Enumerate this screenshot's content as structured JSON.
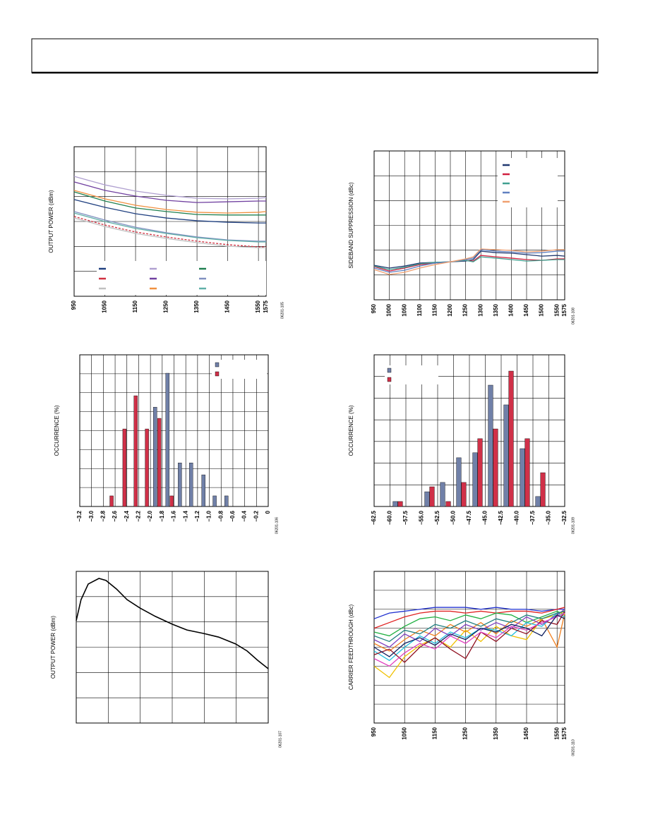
{
  "chart_data": [
    {
      "type": "line",
      "ylabel": "OUTPUT POWER (dBm)",
      "figure_id": "06201-105",
      "xlim": [
        950,
        1575
      ],
      "ylim": [
        0,
        6
      ],
      "xticks": [
        950,
        1050,
        1150,
        1250,
        1350,
        1450,
        1550,
        1575
      ],
      "yticks": [
        0,
        1,
        2,
        3,
        4,
        5,
        6
      ],
      "ytick_labels": false,
      "grid": true,
      "legend": "lower right",
      "x": [
        950,
        1050,
        1150,
        1250,
        1350,
        1450,
        1550,
        1575
      ],
      "series": [
        {
          "color": "#b0a0d0",
          "values": [
            4.81,
            4.47,
            4.22,
            4.05,
            3.93,
            3.91,
            3.93,
            3.96
          ]
        },
        {
          "color": "#7040a0",
          "values": [
            4.59,
            4.25,
            4.02,
            3.85,
            3.76,
            3.79,
            3.82,
            3.82
          ]
        },
        {
          "color": "#f09040",
          "values": [
            4.25,
            3.91,
            3.65,
            3.48,
            3.37,
            3.34,
            3.37,
            3.4
          ]
        },
        {
          "color": "#208050",
          "values": [
            4.19,
            3.82,
            3.54,
            3.4,
            3.28,
            3.26,
            3.26,
            3.26
          ]
        },
        {
          "color": "#204080",
          "values": [
            3.88,
            3.57,
            3.31,
            3.14,
            3.03,
            2.97,
            2.94,
            2.94
          ]
        },
        {
          "color": "#8090c0",
          "values": [
            3.4,
            3.06,
            2.77,
            2.55,
            2.38,
            2.26,
            2.21,
            2.21
          ]
        },
        {
          "color": "#60b0a8",
          "values": [
            3.34,
            3.0,
            2.72,
            2.52,
            2.35,
            2.24,
            2.18,
            2.18
          ]
        },
        {
          "color": "#d03040",
          "dashed": true,
          "values": [
            3.2,
            2.86,
            2.58,
            2.38,
            2.21,
            2.07,
            1.98,
            1.98
          ]
        },
        {
          "color": "#c0c0c0",
          "values": [
            3.14,
            2.8,
            2.52,
            2.32,
            2.15,
            2.01,
            1.95,
            1.95
          ]
        }
      ]
    },
    {
      "type": "line",
      "ylabel": "SIDEBAND SUPPRESSION (dBc)",
      "figure_id": "06201-108",
      "xlim": [
        950,
        1575
      ],
      "ylim": [
        0,
        6
      ],
      "xticks": [
        950,
        1000,
        1050,
        1100,
        1150,
        1200,
        1250,
        1300,
        1350,
        1400,
        1450,
        1500,
        1550,
        1575
      ],
      "yticks": [
        0,
        1,
        2,
        3,
        4,
        5,
        6
      ],
      "ytick_labels": false,
      "grid": true,
      "legend": "upper right",
      "x": [
        950,
        1000,
        1050,
        1100,
        1150,
        1200,
        1250,
        1275,
        1300,
        1350,
        1400,
        1450,
        1500,
        1550,
        1575
      ],
      "series": [
        {
          "color": "#203870",
          "values": [
            1.39,
            1.28,
            1.36,
            1.48,
            1.51,
            1.53,
            1.56,
            1.62,
            1.96,
            1.9,
            1.88,
            1.82,
            1.76,
            1.79,
            1.76
          ]
        },
        {
          "color": "#d02040",
          "values": [
            1.34,
            1.16,
            1.28,
            1.42,
            1.48,
            1.53,
            1.59,
            1.56,
            1.79,
            1.73,
            1.68,
            1.62,
            1.59,
            1.65,
            1.65
          ]
        },
        {
          "color": "#40a090",
          "values": [
            1.36,
            1.22,
            1.31,
            1.45,
            1.51,
            1.53,
            1.59,
            1.53,
            1.73,
            1.68,
            1.62,
            1.56,
            1.59,
            1.62,
            1.62
          ]
        },
        {
          "color": "#6080c0",
          "values": [
            1.28,
            1.11,
            1.19,
            1.36,
            1.48,
            1.53,
            1.62,
            1.68,
            2.02,
            1.96,
            1.93,
            1.88,
            1.9,
            1.96,
            1.96
          ]
        },
        {
          "color": "#f0a070",
          "values": [
            1.22,
            1.02,
            1.11,
            1.28,
            1.42,
            1.53,
            1.65,
            1.73,
            2.05,
            2.02,
            1.99,
            1.93,
            1.96,
            2.02,
            2.02
          ]
        }
      ]
    },
    {
      "type": "bar",
      "ylabel": "OCCURRENCE (%)",
      "figure_id": "06201-106",
      "xlim": [
        -3.2,
        0
      ],
      "ylim": [
        0,
        8
      ],
      "xticks": [
        {
          "value": -3.2,
          "label": "–3.2"
        },
        {
          "value": -3.0,
          "label": "–3.0"
        },
        {
          "value": -2.8,
          "label": "–2.8"
        },
        {
          "value": -2.6,
          "label": "–2.6"
        },
        {
          "value": -2.4,
          "label": "–2.4"
        },
        {
          "value": -2.2,
          "label": "–2.2"
        },
        {
          "value": -2.0,
          "label": "–2.0"
        },
        {
          "value": -1.8,
          "label": "–1.8"
        },
        {
          "value": -1.6,
          "label": "–1.6"
        },
        {
          "value": -1.4,
          "label": "–1.4"
        },
        {
          "value": -1.2,
          "label": "–1.2"
        },
        {
          "value": -1.0,
          "label": "–1.0"
        },
        {
          "value": -0.8,
          "label": "–0.8"
        },
        {
          "value": -0.6,
          "label": "–0.6"
        },
        {
          "value": -0.4,
          "label": "–0.4"
        },
        {
          "value": -0.2,
          "label": "–0.2"
        },
        0
      ],
      "yticks": [
        0,
        1,
        2,
        3,
        4,
        5,
        6,
        7,
        8
      ],
      "ytick_labels": false,
      "grid": true,
      "legend": "upper right",
      "series": [
        {
          "color": "#7080a8",
          "x": [
            -1.92,
            -1.71,
            -1.5,
            -1.31,
            -1.1,
            -0.91,
            -0.71
          ],
          "values": [
            5.24,
            7.03,
            2.3,
            2.3,
            1.67,
            0.56,
            0.56
          ]
        },
        {
          "color": "#d03048",
          "x": [
            -2.66,
            -2.44,
            -2.25,
            -2.06,
            -1.85,
            -1.64
          ],
          "values": [
            0.56,
            4.09,
            5.84,
            4.09,
            4.65,
            0.56
          ]
        }
      ]
    },
    {
      "type": "bar",
      "ylabel": "OCCURRENCE (%)",
      "figure_id": "06201-109",
      "xlim": [
        -62.5,
        -32.5
      ],
      "ylim": [
        0,
        7
      ],
      "xticks": [
        {
          "value": -62.5,
          "label": "–62.5"
        },
        {
          "value": -60.0,
          "label": "–60.0"
        },
        {
          "value": -57.5,
          "label": "–57.5"
        },
        {
          "value": -55.0,
          "label": "–55.0"
        },
        {
          "value": -52.5,
          "label": "–52.5"
        },
        {
          "value": -50.0,
          "label": "–50.0"
        },
        {
          "value": -47.5,
          "label": "–47.5"
        },
        {
          "value": -45.0,
          "label": "–45.0"
        },
        {
          "value": -42.5,
          "label": "–42.5"
        },
        {
          "value": -40.0,
          "label": "–40.0"
        },
        {
          "value": -37.5,
          "label": "–37.5"
        },
        {
          "value": -35.0,
          "label": "–35.0"
        },
        {
          "value": -32.5,
          "label": "–32.5"
        }
      ],
      "yticks": [
        0,
        1,
        2,
        3,
        4,
        5,
        6,
        7
      ],
      "ytick_labels": false,
      "grid": true,
      "legend": "upper left",
      "series": [
        {
          "color": "#7080a8",
          "x": [
            -59.17,
            -54.17,
            -51.72,
            -49.17,
            -46.61,
            -44.17,
            -41.72,
            -39.17,
            -36.72
          ],
          "values": [
            0.23,
            0.68,
            1.11,
            2.25,
            2.48,
            5.6,
            4.69,
            2.67,
            0.46
          ]
        },
        {
          "color": "#d03048",
          "x": [
            -58.39,
            -53.39,
            -50.83,
            -48.39,
            -45.83,
            -43.39,
            -40.94,
            -38.39,
            -35.94
          ],
          "values": [
            0.23,
            0.91,
            0.23,
            1.11,
            3.13,
            3.58,
            6.25,
            3.13,
            1.56
          ]
        }
      ]
    },
    {
      "type": "line",
      "ylabel": "OUTPUT POWER (dBm)",
      "figure_id": "06201-107",
      "xlim": [
        0,
        6
      ],
      "ylim": [
        0,
        6
      ],
      "xticks": [
        0,
        1,
        2,
        3,
        4,
        5,
        6
      ],
      "yticks": [
        0,
        1,
        2,
        3,
        4,
        5,
        6
      ],
      "xtick_labels": false,
      "ytick_labels": false,
      "grid": true,
      "x": [
        0,
        0.15,
        0.375,
        0.71,
        0.93,
        1.26,
        1.59,
        1.99,
        2.47,
        3.0,
        3.46,
        3.99,
        4.45,
        4.98,
        5.34,
        5.67,
        6
      ],
      "series": [
        {
          "color": "#000000",
          "values": [
            4.05,
            4.88,
            5.5,
            5.72,
            5.64,
            5.3,
            4.88,
            4.55,
            4.22,
            3.91,
            3.68,
            3.54,
            3.4,
            3.13,
            2.85,
            2.48,
            2.15
          ]
        }
      ]
    },
    {
      "type": "line",
      "ylabel": "CARRIER FEEDTHROUGH (dBc)",
      "figure_id": "06201-110",
      "xlim": [
        950,
        1575
      ],
      "ylim": [
        0,
        8
      ],
      "xticks": [
        950,
        1050,
        1150,
        1250,
        1350,
        1450,
        1550,
        1575
      ],
      "yticks": [
        0,
        1,
        2,
        3,
        4,
        5,
        6,
        7,
        8
      ],
      "ytick_labels": false,
      "grid": true,
      "x": [
        950,
        1000,
        1050,
        1100,
        1150,
        1200,
        1250,
        1300,
        1350,
        1400,
        1450,
        1500,
        1550,
        1575
      ],
      "series": [
        {
          "color": "#2030d0",
          "values": [
            5.5,
            5.8,
            5.9,
            6.0,
            6.1,
            6.1,
            6.1,
            6.0,
            6.1,
            6.0,
            6.0,
            5.9,
            6.0,
            6.0
          ]
        },
        {
          "color": "#e02020",
          "values": [
            5.0,
            5.3,
            5.6,
            5.8,
            5.9,
            5.9,
            5.8,
            5.9,
            5.8,
            5.9,
            5.9,
            5.8,
            6.0,
            6.1
          ]
        },
        {
          "color": "#20b040",
          "values": [
            4.8,
            4.6,
            5.1,
            5.5,
            5.6,
            5.4,
            5.7,
            5.5,
            5.8,
            5.7,
            5.3,
            5.6,
            5.9,
            5.7
          ]
        },
        {
          "color": "#f08020",
          "values": [
            4.2,
            3.8,
            4.4,
            4.9,
            4.6,
            5.2,
            4.8,
            5.3,
            4.7,
            5.4,
            5.1,
            5.5,
            4.0,
            5.8
          ]
        },
        {
          "color": "#f0c000",
          "values": [
            3.0,
            2.4,
            3.5,
            4.1,
            4.5,
            4.0,
            4.9,
            4.3,
            5.1,
            4.6,
            4.4,
            5.5,
            5.7,
            5.9
          ]
        },
        {
          "color": "#20c0e0",
          "values": [
            3.8,
            3.3,
            4.0,
            4.6,
            4.2,
            4.8,
            4.5,
            5.0,
            4.9,
            4.6,
            5.3,
            5.1,
            5.8,
            5.6
          ]
        },
        {
          "color": "#901020",
          "values": [
            3.6,
            3.9,
            3.2,
            4.0,
            4.5,
            3.9,
            3.4,
            4.8,
            4.3,
            5.0,
            4.7,
            5.4,
            5.2,
            5.9
          ]
        },
        {
          "color": "#8040c0",
          "values": [
            4.4,
            4.0,
            4.7,
            4.3,
            5.0,
            4.6,
            5.2,
            4.9,
            5.3,
            5.0,
            5.6,
            5.2,
            5.7,
            6.0
          ]
        },
        {
          "color": "#e040c0",
          "values": [
            3.4,
            3.0,
            3.7,
            4.2,
            3.9,
            4.6,
            4.2,
            4.8,
            4.5,
            5.1,
            4.9,
            5.3,
            5.6,
            5.8
          ]
        },
        {
          "color": "#208080",
          "values": [
            4.6,
            4.3,
            4.9,
            4.7,
            5.2,
            5.0,
            5.4,
            5.1,
            5.5,
            5.3,
            5.7,
            5.5,
            5.8,
            5.9
          ]
        },
        {
          "color": "#102060",
          "values": [
            4.0,
            3.5,
            4.2,
            4.5,
            4.1,
            4.7,
            4.4,
            5.0,
            4.8,
            5.2,
            5.0,
            4.6,
            5.7,
            5.5
          ]
        }
      ]
    }
  ]
}
